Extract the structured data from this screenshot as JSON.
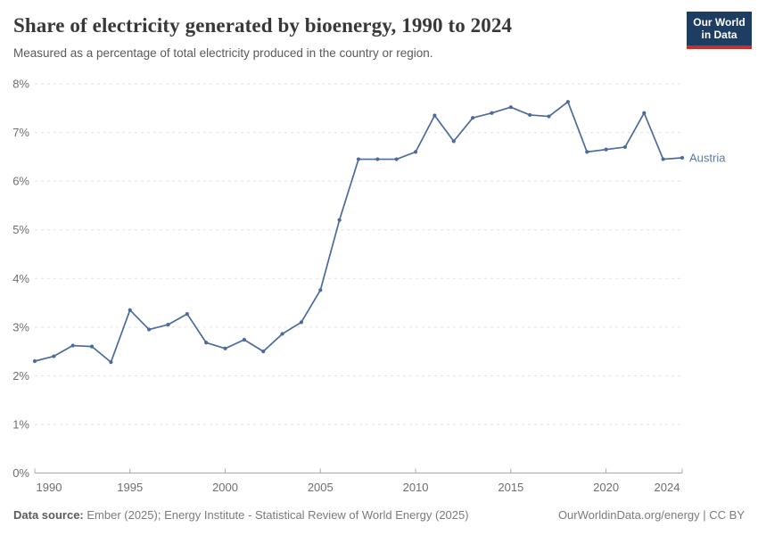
{
  "header": {
    "title": "Share of electricity generated by bioenergy, 1990 to 2024",
    "subtitle": "Measured as a percentage of total electricity produced in the country or region."
  },
  "logo": {
    "line1": "Our World",
    "line2": "in Data"
  },
  "chart_data": {
    "type": "line",
    "title": "Share of electricity generated by bioenergy, 1990 to 2024",
    "xlabel": "",
    "ylabel": "",
    "x": [
      1990,
      1991,
      1992,
      1993,
      1994,
      1995,
      1996,
      1997,
      1998,
      1999,
      2000,
      2001,
      2002,
      2003,
      2004,
      2005,
      2006,
      2007,
      2008,
      2009,
      2010,
      2011,
      2012,
      2013,
      2014,
      2015,
      2016,
      2017,
      2018,
      2019,
      2020,
      2021,
      2022,
      2023,
      2024
    ],
    "series": [
      {
        "name": "Austria",
        "color": "#4C6A9C",
        "values": [
          2.3,
          2.4,
          2.62,
          2.6,
          2.28,
          3.35,
          2.95,
          3.05,
          3.27,
          2.68,
          2.56,
          2.74,
          2.5,
          2.86,
          3.1,
          3.76,
          5.2,
          6.45,
          6.45,
          6.45,
          6.6,
          7.35,
          6.82,
          7.3,
          7.4,
          7.52,
          7.36,
          7.33,
          7.63,
          6.6,
          6.65,
          6.7,
          7.4,
          6.45,
          6.48
        ]
      }
    ],
    "xlim": [
      1990,
      2024
    ],
    "ylim": [
      0,
      8
    ],
    "x_ticks": [
      1990,
      1995,
      2000,
      2005,
      2010,
      2015,
      2020,
      2024
    ],
    "y_ticks": [
      0,
      1,
      2,
      3,
      4,
      5,
      6,
      7,
      8
    ],
    "y_tick_suffix": "%",
    "grid": "horizontal-dashed",
    "legend_position": "end-of-line",
    "entity_label": "Austria"
  },
  "footer": {
    "source_label": "Data source:",
    "source_text": " Ember (2025); Energy Institute - Statistical Review of World Energy (2025)",
    "right_text": "OurWorldinData.org/energy | CC BY"
  },
  "colors": {
    "line": "#4C6A9C",
    "grid": "#e2e2e2",
    "axis": "#a9a9a9",
    "tick_label": "#6e6e6e",
    "logo_bg": "#1d3d63",
    "logo_red": "#c5302b"
  }
}
